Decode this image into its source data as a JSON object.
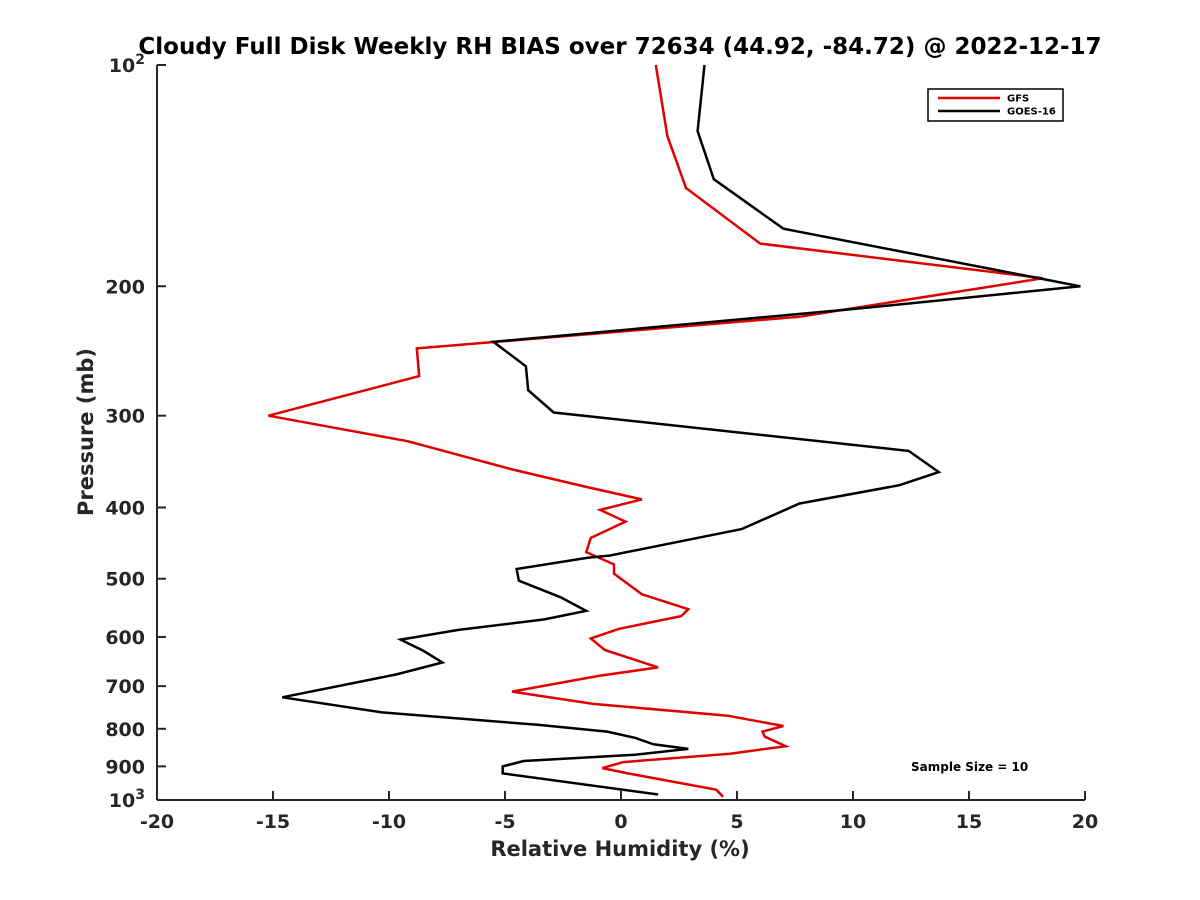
{
  "chart_data": {
    "type": "line",
    "title": "Cloudy Full Disk Weekly RH BIAS over 72634 (44.92, -84.72) @ 2022-12-17",
    "xlabel": "Relative Humidity (%)",
    "ylabel": "Pressure (mb)",
    "xlim": [
      -20,
      20
    ],
    "ylim": [
      100,
      1000
    ],
    "y_scale": "log",
    "y_reversed": true,
    "grid": false,
    "legend_position": "top-right",
    "x_ticks": [
      -20,
      -15,
      -10,
      -5,
      0,
      5,
      10,
      15,
      20
    ],
    "x_tick_labels": [
      "-20",
      "-15",
      "-10",
      "-5",
      "0",
      "5",
      "10",
      "15",
      "20"
    ],
    "y_ticks": [
      {
        "value": 100,
        "base": "10",
        "exp": "2"
      },
      {
        "value": 200,
        "label": "200"
      },
      {
        "value": 300,
        "label": "300"
      },
      {
        "value": 400,
        "label": "400"
      },
      {
        "value": 500,
        "label": "500"
      },
      {
        "value": 600,
        "label": "600"
      },
      {
        "value": 700,
        "label": "700"
      },
      {
        "value": 800,
        "label": "800"
      },
      {
        "value": 900,
        "label": "900"
      },
      {
        "value": 1000,
        "base": "10",
        "exp": "3"
      }
    ],
    "series": [
      {
        "name": "GFS",
        "color": "#e00000",
        "x": [
          1.5,
          2.0,
          2.8,
          6.0,
          18.2,
          7.7,
          -8.8,
          -8.7,
          -15.2,
          -9.2,
          -4.7,
          -1.5,
          0.9,
          -0.9,
          0.2,
          -1.3,
          -1.5,
          -0.3,
          -0.3,
          0.9,
          2.9,
          2.6,
          -0.1,
          -1.3,
          -0.7,
          1.6,
          -1.0,
          -4.7,
          -1.2,
          4.6,
          7.0,
          6.1,
          6.2,
          7.1,
          4.7,
          0.1,
          -0.8,
          0.3,
          4.1,
          4.4
        ],
        "y": [
          100,
          125,
          147,
          175,
          195,
          220,
          243,
          265,
          300,
          325,
          355,
          375,
          390,
          403,
          418,
          440,
          460,
          478,
          492,
          525,
          550,
          562,
          585,
          603,
          625,
          660,
          678,
          712,
          740,
          768,
          793,
          807,
          820,
          845,
          865,
          888,
          905,
          920,
          968,
          990
        ]
      },
      {
        "name": "GOES-16",
        "color": "#000000",
        "x": [
          3.6,
          3.3,
          4.0,
          7.0,
          19.8,
          9.9,
          -5.5,
          -4.1,
          -4.0,
          -2.9,
          12.4,
          13.7,
          12.0,
          7.7,
          5.2,
          -0.5,
          -1.4,
          -4.5,
          -4.4,
          -2.6,
          -1.5,
          -3.3,
          -7.0,
          -9.5,
          -8.5,
          -7.7,
          -9.7,
          -14.6,
          -10.3,
          -3.6,
          -0.6,
          0.6,
          1.4,
          2.9,
          0.6,
          -4.2,
          -5.1,
          -5.1,
          1.6
        ],
        "y": [
          100,
          123,
          143,
          167,
          200,
          215,
          238,
          257,
          277,
          297,
          335,
          358,
          373,
          395,
          428,
          465,
          468,
          485,
          503,
          530,
          553,
          568,
          587,
          605,
          627,
          650,
          675,
          725,
          760,
          790,
          807,
          823,
          840,
          852,
          868,
          885,
          900,
          920,
          983
        ]
      }
    ],
    "annotation": "Sample Size = 10"
  }
}
